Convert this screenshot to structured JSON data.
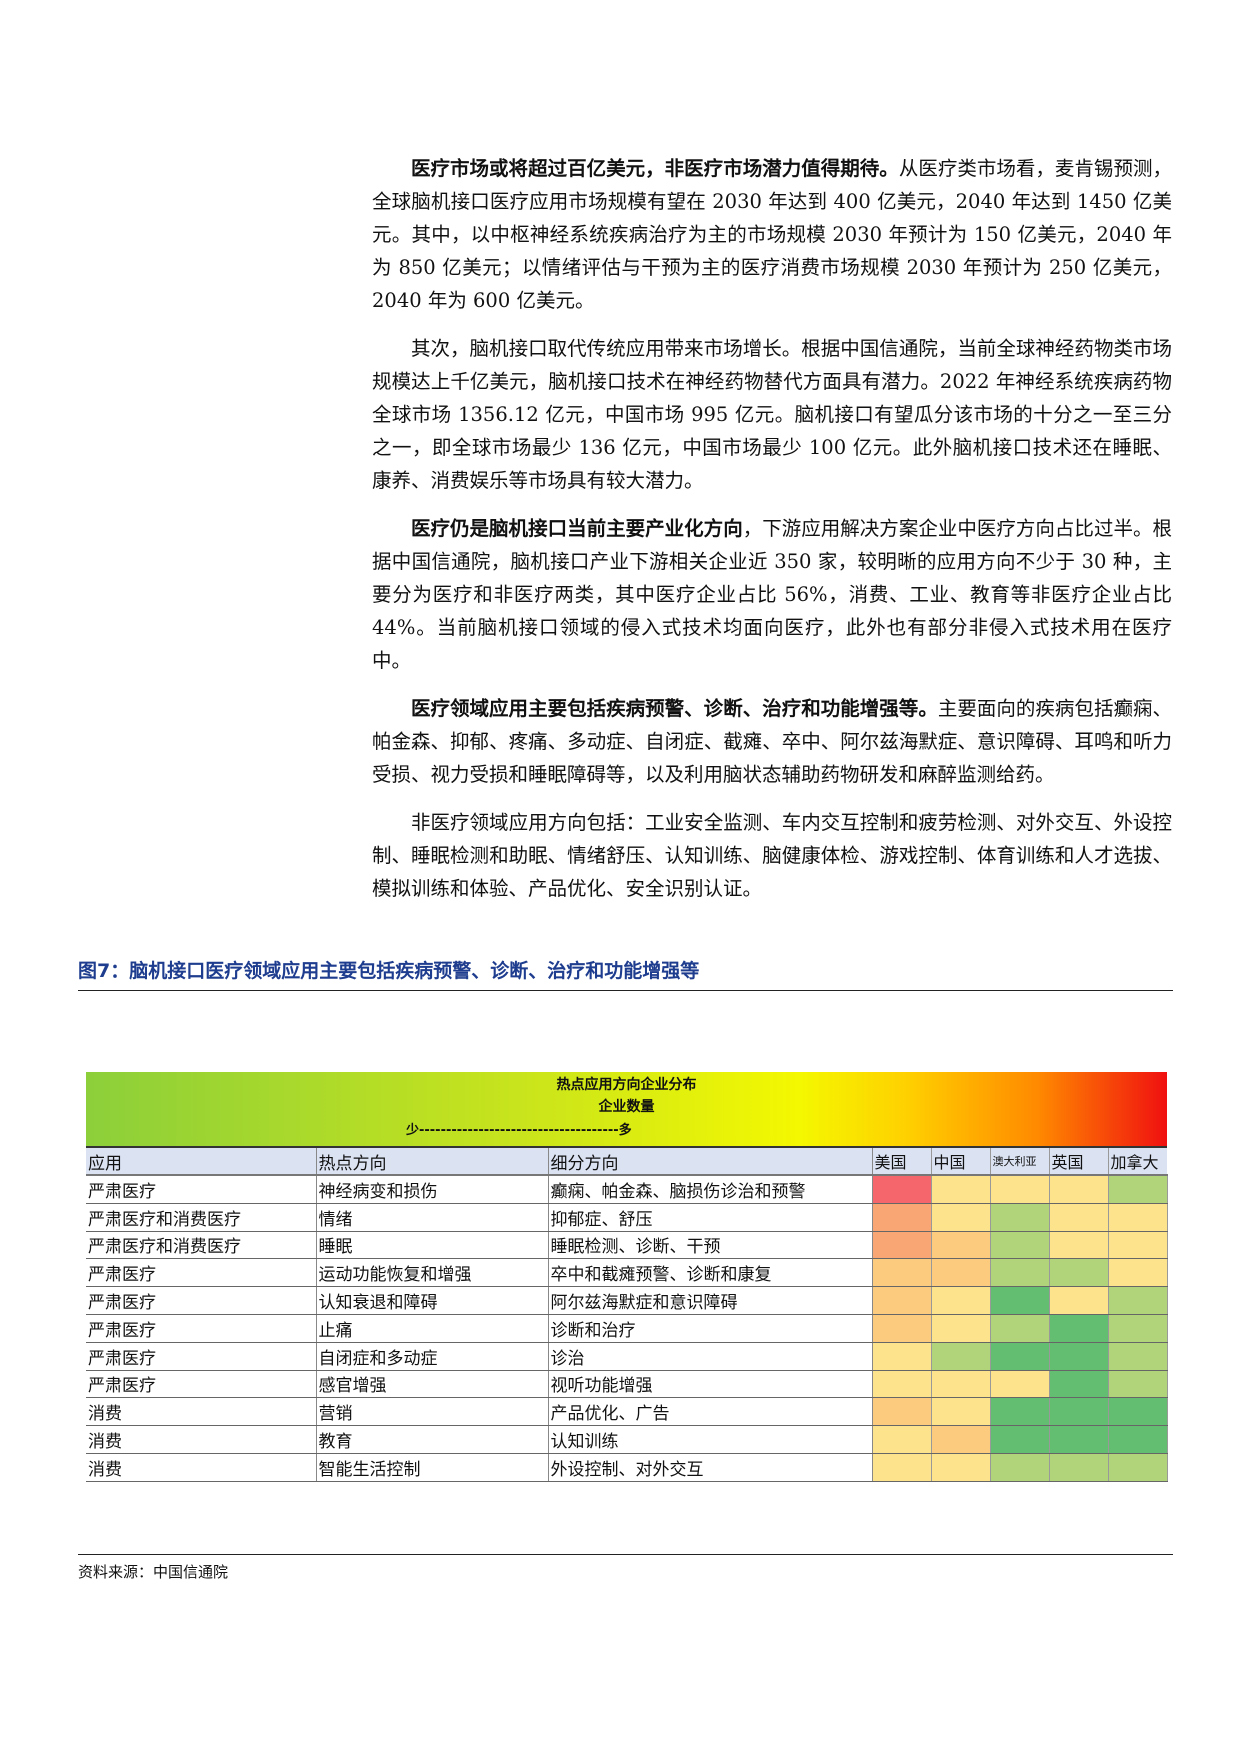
{
  "paragraphs": [
    {
      "bold": "医疗市场或将超过百亿美元，非医疗市场潜力值得期待。",
      "text": "从医疗类市场看，麦肯锡预测，全球脑机接口医疗应用市场规模有望在 2030 年达到 400 亿美元，2040 年达到 1450 亿美元。其中，以中枢神经系统疾病治疗为主的市场规模 2030 年预计为 150 亿美元，2040 年为 850 亿美元；以情绪评估与干预为主的医疗消费市场规模 2030 年预计为 250 亿美元，2040 年为 600 亿美元。"
    },
    {
      "bold": "",
      "text": "其次，脑机接口取代传统应用带来市场增长。根据中国信通院，当前全球神经药物类市场规模达上千亿美元，脑机接口技术在神经药物替代方面具有潜力。2022 年神经系统疾病药物全球市场 1356.12 亿元，中国市场 995 亿元。脑机接口有望瓜分该市场的十分之一至三分之一，即全球市场最少 136 亿元，中国市场最少 100 亿元。此外脑机接口技术还在睡眠、康养、消费娱乐等市场具有较大潜力。"
    },
    {
      "bold": "医疗仍是脑机接口当前主要产业化方向",
      "text": "，下游应用解决方案企业中医疗方向占比过半。根据中国信通院，脑机接口产业下游相关企业近 350 家，较明晰的应用方向不少于 30 种，主要分为医疗和非医疗两类，其中医疗企业占比 56%，消费、工业、教育等非医疗企业占比 44%。当前脑机接口领域的侵入式技术均面向医疗，此外也有部分非侵入式技术用在医疗中。"
    },
    {
      "bold": "医疗领域应用主要包括疾病预警、诊断、治疗和功能增强等。",
      "text": "主要面向的疾病包括癫痫、帕金森、抑郁、疼痛、多动症、自闭症、截瘫、卒中、阿尔兹海默症、意识障碍、耳鸣和听力受损、视力受损和睡眠障碍等，以及利用脑状态辅助药物研发和麻醉监测给药。"
    },
    {
      "bold": "",
      "text": "非医疗领域应用方向包括：工业安全监测、车内交互控制和疲劳检测、对外交互、外设控制、睡眠检测和助眠、情绪舒压、认知训练、脑健康体检、游戏控制、体育训练和人才选拔、模拟训练和体验、产品优化、安全识别认证。"
    }
  ],
  "figure": {
    "caption": "图7：脑机接口医疗领域应用主要包括疾病预警、诊断、治疗和功能增强等",
    "legend_title": "热点应用方向企业分布",
    "legend_subtitle": "企业数量",
    "legend_scale": "少-------------------------------------多",
    "colors": {
      "0": "#63be72",
      "1": "#b1d47b",
      "2": "#fde38c",
      "3": "#fccb7e",
      "4": "#f9a574",
      "5": "#f4666b"
    },
    "columns": [
      "应用",
      "热点方向",
      "细分方向",
      "美国",
      "中国",
      "澳大利亚",
      "英国",
      "加拿大"
    ],
    "rows": [
      {
        "app": "严肃医疗",
        "hotspot": "神经病变和损伤",
        "detail": "癫痫、帕金森、脑损伤诊治和预警",
        "levels": [
          5,
          2,
          2,
          2,
          1
        ]
      },
      {
        "app": "严肃医疗和消费医疗",
        "hotspot": "情绪",
        "detail": "抑郁症、舒压",
        "levels": [
          4,
          2,
          1,
          2,
          2
        ]
      },
      {
        "app": "严肃医疗和消费医疗",
        "hotspot": "睡眠",
        "detail": "睡眠检测、诊断、干预",
        "levels": [
          4,
          3,
          1,
          2,
          2
        ]
      },
      {
        "app": "严肃医疗",
        "hotspot": "运动功能恢复和增强",
        "detail": "卒中和截瘫预警、诊断和康复",
        "levels": [
          3,
          3,
          1,
          1,
          2
        ]
      },
      {
        "app": "严肃医疗",
        "hotspot": "认知衰退和障碍",
        "detail": "阿尔兹海默症和意识障碍",
        "levels": [
          3,
          2,
          0,
          2,
          1
        ]
      },
      {
        "app": "严肃医疗",
        "hotspot": "止痛",
        "detail": "诊断和治疗",
        "levels": [
          3,
          2,
          1,
          0,
          1
        ]
      },
      {
        "app": "严肃医疗",
        "hotspot": "自闭症和多动症",
        "detail": "诊治",
        "levels": [
          2,
          1,
          0,
          0,
          1
        ]
      },
      {
        "app": "严肃医疗",
        "hotspot": "感官增强",
        "detail": "视听功能增强",
        "levels": [
          2,
          2,
          2,
          0,
          1
        ]
      },
      {
        "app": "消费",
        "hotspot": "营销",
        "detail": "产品优化、广告",
        "levels": [
          3,
          2,
          0,
          0,
          0
        ]
      },
      {
        "app": "消费",
        "hotspot": "教育",
        "detail": "认知训练",
        "levels": [
          2,
          3,
          0,
          0,
          0
        ]
      },
      {
        "app": "消费",
        "hotspot": "智能生活控制",
        "detail": "外设控制、对外交互",
        "levels": [
          2,
          2,
          1,
          1,
          1
        ]
      }
    ]
  },
  "source": "资料来源：中国信通院"
}
